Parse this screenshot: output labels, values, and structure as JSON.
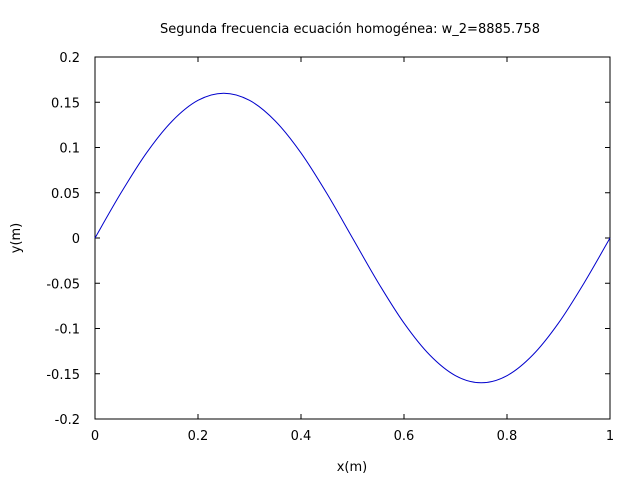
{
  "chart_data": {
    "type": "line",
    "title": "Segunda frecuencia ecuación homogénea: w_2=8885.758",
    "xlabel": "x(m)",
    "ylabel": "y(m)",
    "xlim": [
      0,
      1
    ],
    "ylim": [
      -0.2,
      0.2
    ],
    "xticks": [
      0,
      0.2,
      0.4,
      0.6,
      0.8,
      1
    ],
    "xtick_labels": [
      "0",
      "0.2",
      "0.4",
      "0.6",
      "0.8",
      "1"
    ],
    "yticks": [
      0.2,
      0.15,
      0.1,
      0.05,
      0,
      -0.05,
      -0.1,
      -0.15,
      -0.2
    ],
    "ytick_labels": [
      "0.2",
      "0.15",
      "0.1",
      "0.05",
      "0",
      "-0.05",
      "-0.1",
      "-0.15",
      "-0.2"
    ],
    "grid": false,
    "legend": "none",
    "line_color": "#0000cc",
    "series": [
      {
        "x": [
          0,
          0.05,
          0.1,
          0.15,
          0.2,
          0.25,
          0.3,
          0.35,
          0.4,
          0.45,
          0.5,
          0.55,
          0.6,
          0.65,
          0.7,
          0.75,
          0.8,
          0.85,
          0.9,
          0.95,
          1
        ],
        "values": [
          0,
          0.0494,
          0.094,
          0.1293,
          0.1521,
          0.16,
          0.1521,
          0.1293,
          0.094,
          0.0494,
          0,
          -0.0494,
          -0.094,
          -0.1293,
          -0.1521,
          -0.16,
          -0.1521,
          -0.1293,
          -0.094,
          -0.0494,
          0
        ]
      }
    ]
  }
}
